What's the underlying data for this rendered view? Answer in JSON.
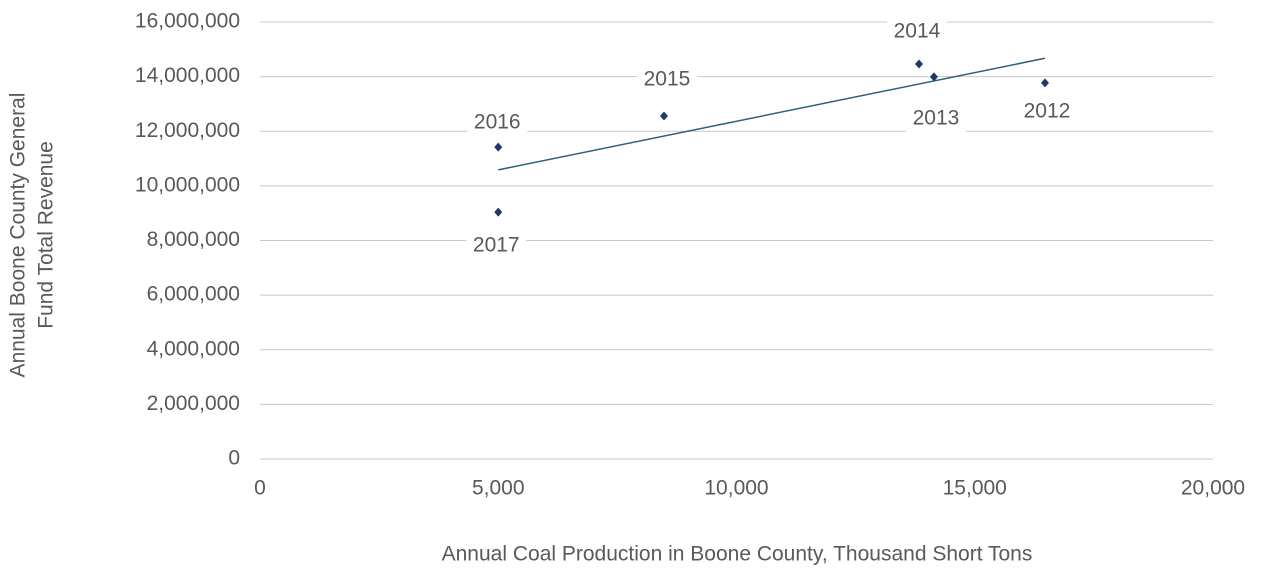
{
  "chart_data": {
    "type": "scatter",
    "xlabel": "Annual Coal Production in Boone County, Thousand Short Tons",
    "ylabel": [
      "Annual Boone County General",
      "Fund Total Revenue"
    ],
    "labels": [
      "2012",
      "2013",
      "2014",
      "2015",
      "2016",
      "2017"
    ],
    "x": [
      16474,
      14144,
      13830,
      8478,
      5000,
      5000
    ],
    "y": [
      13770000,
      13990000,
      14460000,
      12560000,
      11420000,
      9040000
    ],
    "color": "#1f3864",
    "trendline": "linear",
    "trendline_color": "#2e6079",
    "grid": true,
    "xlim": [
      0,
      20000
    ],
    "xticks": [
      0,
      {
        "value": 5000,
        "label": "5,000"
      },
      {
        "value": 10000,
        "label": "10,000"
      },
      {
        "value": 15000,
        "label": "15,000"
      },
      {
        "value": 20000,
        "label": "20,000"
      }
    ],
    "ylim": [
      0,
      16000000
    ],
    "yticks": [
      0,
      {
        "value": 2000000,
        "label": "2,000,000"
      },
      {
        "value": 4000000,
        "label": "4,000,000"
      },
      {
        "value": 6000000,
        "label": "6,000,000"
      },
      {
        "value": 8000000,
        "label": "8,000,000"
      },
      {
        "value": 10000000,
        "label": "10,000,000"
      },
      {
        "value": 12000000,
        "label": "12,000,000"
      },
      {
        "value": 14000000,
        "label": "14,000,000"
      },
      {
        "value": 16000000,
        "label": "16,000,000"
      }
    ]
  }
}
